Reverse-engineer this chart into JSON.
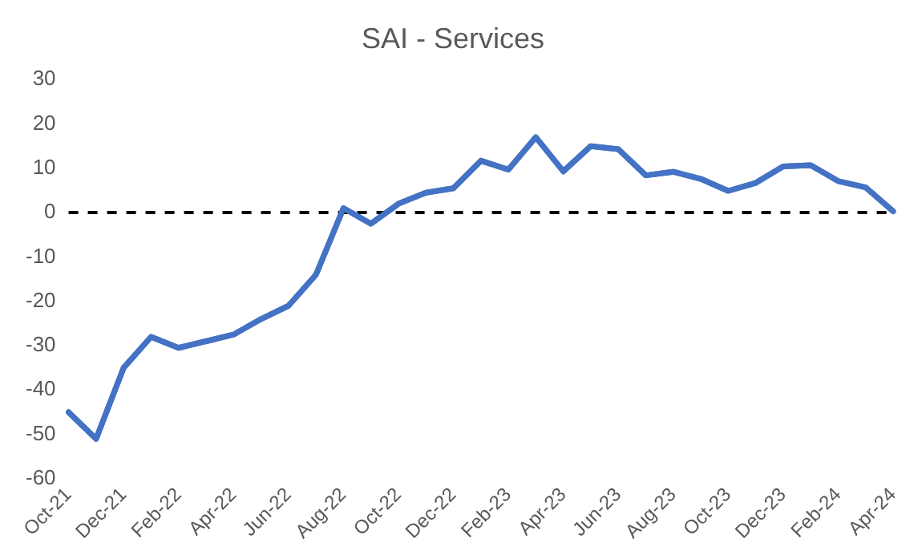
{
  "chart_data": {
    "type": "line",
    "title": "SAI - Services",
    "categories": [
      "Oct-21",
      null,
      "Dec-21",
      null,
      "Feb-22",
      null,
      "Apr-22",
      null,
      "Jun-22",
      null,
      "Aug-22",
      null,
      "Oct-22",
      null,
      "Dec-22",
      null,
      "Feb-23",
      null,
      "Apr-23",
      null,
      "Jun-23",
      null,
      "Aug-23",
      null,
      "Oct-23",
      null,
      "Dec-23",
      null,
      "Feb-24",
      null,
      "Apr-24"
    ],
    "series": [
      {
        "color": "#4472c4",
        "values": [
          -45,
          -51,
          -35,
          -28,
          -30.5,
          -29,
          -27.5,
          -24,
          -21,
          -14,
          1,
          -2.5,
          2,
          4.5,
          5.5,
          11.7,
          9.7,
          17,
          9.3,
          15,
          14.3,
          8.4,
          9.2,
          7.6,
          4.9,
          6.7,
          10.4,
          10.7,
          7.1,
          5.7,
          0.3
        ]
      }
    ],
    "ylim": [
      -60,
      30
    ],
    "yticks": [
      -60,
      -50,
      -40,
      -30,
      -20,
      -10,
      0,
      10,
      20,
      30
    ],
    "grid": false,
    "legend": false,
    "marker": "none",
    "line_style": "solid",
    "ref_lines": [
      {
        "axis": "y",
        "value": 0,
        "color": "#000000",
        "line_style": "dashed"
      }
    ]
  }
}
